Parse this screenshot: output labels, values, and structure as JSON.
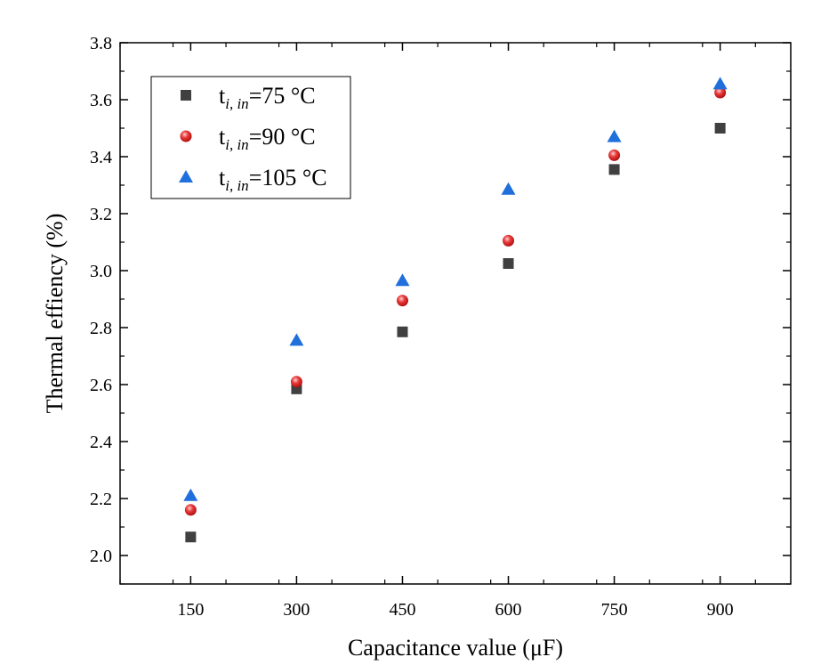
{
  "chart_data": {
    "type": "scatter",
    "xlabel": "Capacitance value (μF)",
    "ylabel": "Thermal effiency (%)",
    "xlim": [
      50,
      1000
    ],
    "ylim": [
      1.9,
      3.8
    ],
    "xticks": [
      150,
      300,
      450,
      600,
      750,
      900
    ],
    "xtick_labels": [
      "150",
      "300",
      "450",
      "600",
      "750",
      "900"
    ],
    "yticks": [
      2.0,
      2.2,
      2.4,
      2.6,
      2.8,
      3.0,
      3.2,
      3.4,
      3.6,
      3.8
    ],
    "ytick_labels": [
      "2.0",
      "2.2",
      "2.4",
      "2.6",
      "2.8",
      "3.0",
      "3.2",
      "3.4",
      "3.6",
      "3.8"
    ],
    "grid": false,
    "legend_position": "top-left",
    "series": [
      {
        "legend_label": {
          "main": "t",
          "sub": "i, in",
          "rest": "=75 °C"
        },
        "marker": "square",
        "color": "#404040",
        "x": [
          150,
          300,
          450,
          600,
          750,
          900
        ],
        "y": [
          2.065,
          2.585,
          2.785,
          3.025,
          3.355,
          3.5
        ]
      },
      {
        "legend_label": {
          "main": "t",
          "sub": "i, in",
          "rest": "=90 °C"
        },
        "marker": "circle",
        "color": "#e02020",
        "x": [
          150,
          300,
          450,
          600,
          750,
          900
        ],
        "y": [
          2.16,
          2.61,
          2.895,
          3.105,
          3.405,
          3.625
        ]
      },
      {
        "legend_label": {
          "main": "t",
          "sub": "i, in",
          "rest": "=105 °C"
        },
        "marker": "triangle",
        "color": "#1f6fdc",
        "x": [
          150,
          300,
          450,
          600,
          750,
          900
        ],
        "y": [
          2.21,
          2.755,
          2.965,
          3.285,
          3.47,
          3.655
        ]
      }
    ]
  }
}
